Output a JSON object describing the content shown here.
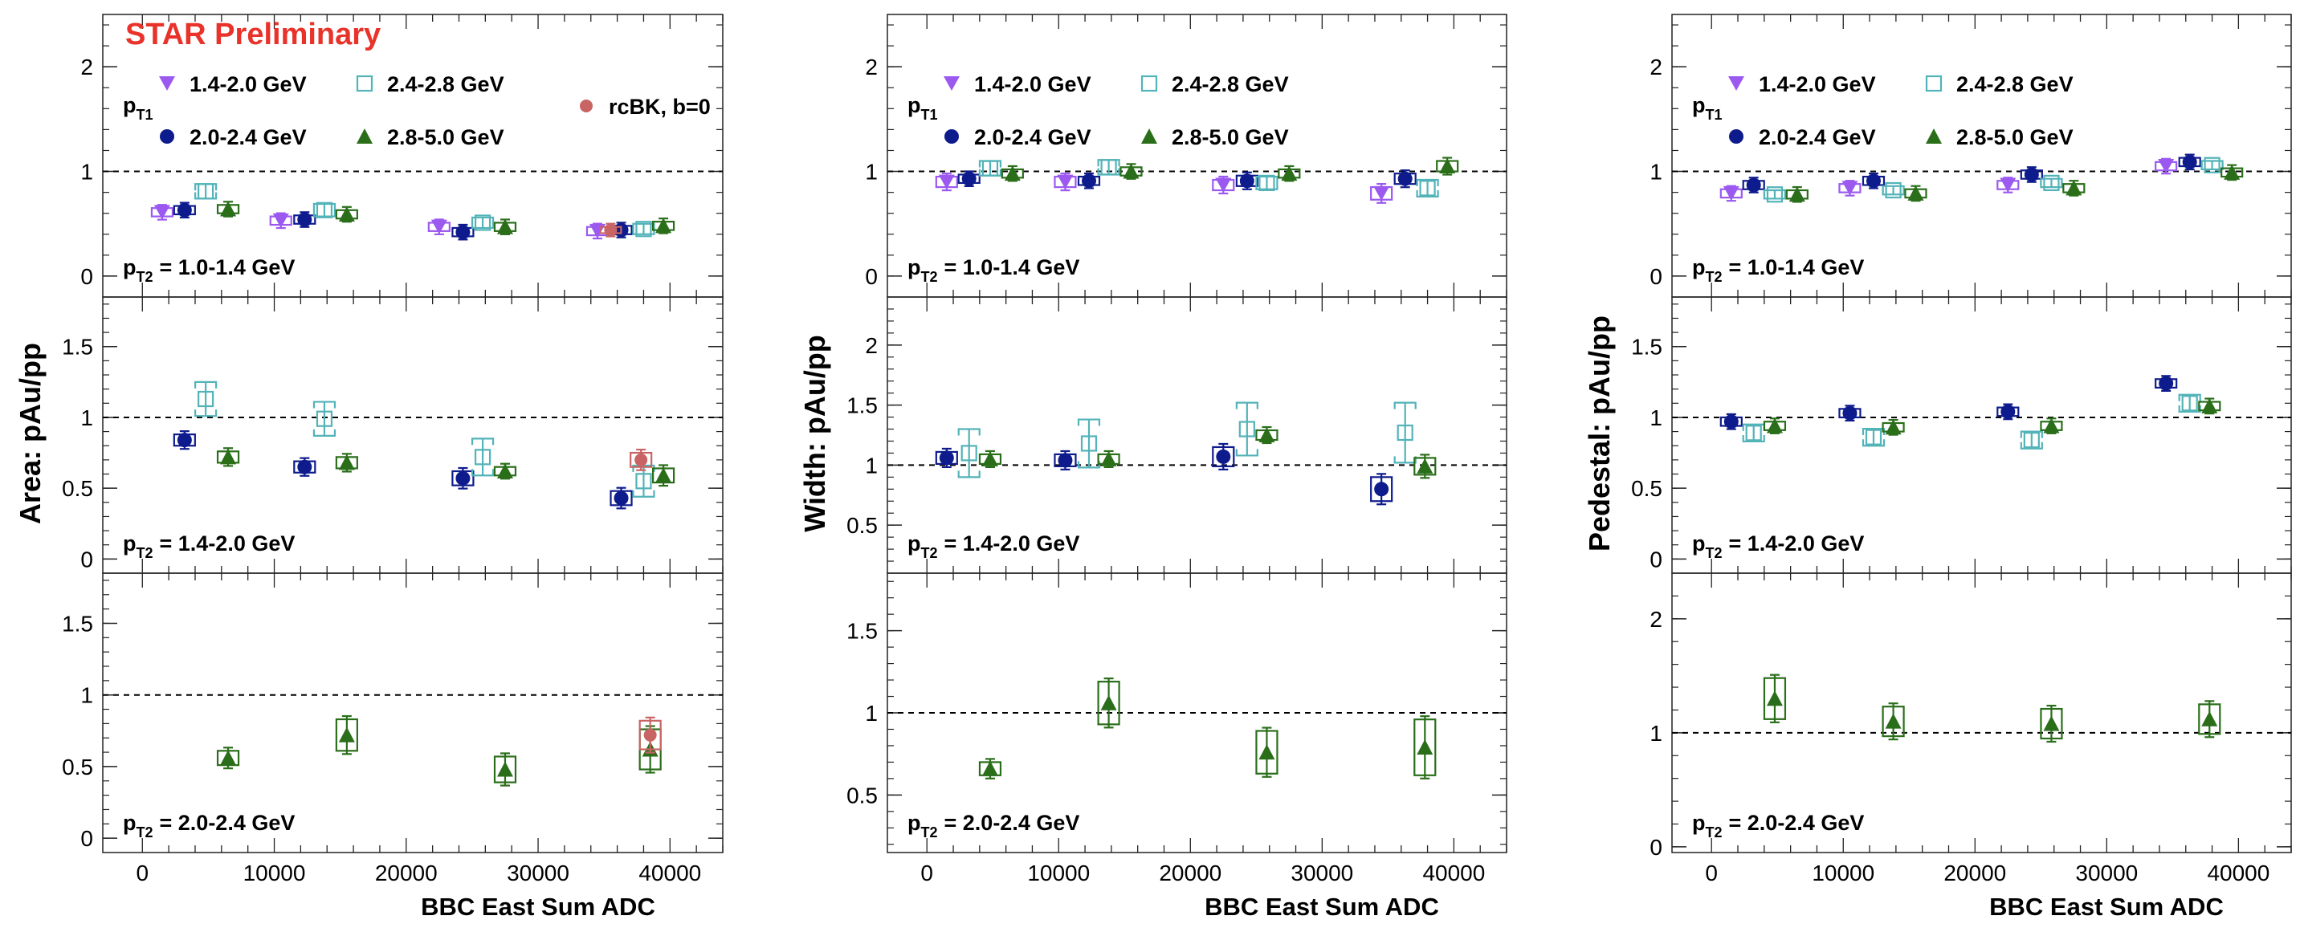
{
  "colors": {
    "s14": "#9b59f0",
    "s20": "#0e1b8c",
    "s24": "#52b3b8",
    "s28": "#2a6e1a",
    "rcbk": "#c96464"
  },
  "common": {
    "preliminary": "STAR Preliminary",
    "xlabel": "BBC East Sum ADC",
    "xticks": [
      "0",
      "10000",
      "20000",
      "30000",
      "40000"
    ],
    "pt1_label": "p",
    "pt1_sub": "T1",
    "pt2_label": "p",
    "pt2_sub": "T2",
    "legend": {
      "s14": "1.4-2.0 GeV",
      "s24": "2.4-2.8 GeV",
      "s20": "2.0-2.4 GeV",
      "s28": "2.8-5.0 GeV",
      "rcbk": "rcBK, b=0"
    }
  },
  "chart_data": [
    {
      "type": "scatter",
      "ylabel": "Area: pAu/pp",
      "xlim": [
        -3000,
        44000
      ],
      "rows": [
        {
          "pt2": "= 1.0-1.4 GeV",
          "ylim": [
            -0.2,
            2.5
          ],
          "yticks": [
            "0",
            "1",
            "2"
          ],
          "series": [
            {
              "key": "s14",
              "points": [
                [
                  1500,
                  0.61,
                  0.04
                ],
                [
                  10500,
                  0.53,
                  0.04
                ],
                [
                  22500,
                  0.47,
                  0.04
                ],
                [
                  34500,
                  0.43,
                  0.04
                ]
              ]
            },
            {
              "key": "s20",
              "points": [
                [
                  3200,
                  0.63,
                  0.04
                ],
                [
                  12300,
                  0.54,
                  0.04
                ],
                [
                  24300,
                  0.42,
                  0.04
                ],
                [
                  36300,
                  0.44,
                  0.04
                ]
              ]
            },
            {
              "key": "s24",
              "points": [
                [
                  4800,
                  0.81,
                  0.07
                ],
                [
                  13800,
                  0.63,
                  0.06
                ],
                [
                  25800,
                  0.51,
                  0.05
                ],
                [
                  38000,
                  0.45,
                  0.05
                ]
              ]
            },
            {
              "key": "s28",
              "points": [
                [
                  6500,
                  0.64,
                  0.04
                ],
                [
                  15500,
                  0.59,
                  0.04
                ],
                [
                  27500,
                  0.47,
                  0.04
                ],
                [
                  39500,
                  0.48,
                  0.04
                ]
              ]
            },
            {
              "key": "rcbk",
              "points": [
                [
                  35500,
                  0.44,
                  0.03
                ]
              ]
            }
          ]
        },
        {
          "pt2": "= 1.4-2.0 GeV",
          "ylim": [
            -0.1,
            1.85
          ],
          "yticks": [
            "0",
            "0.5",
            "1",
            "1.5"
          ],
          "series": [
            {
              "key": "s20",
              "points": [
                [
                  3200,
                  0.84,
                  0.04
                ],
                [
                  12300,
                  0.65,
                  0.04
                ],
                [
                  24300,
                  0.57,
                  0.05
                ],
                [
                  36300,
                  0.43,
                  0.05
                ]
              ]
            },
            {
              "key": "s24",
              "points": [
                [
                  4800,
                  1.13,
                  0.12
                ],
                [
                  13800,
                  0.99,
                  0.12
                ],
                [
                  25800,
                  0.72,
                  0.13
                ],
                [
                  38000,
                  0.55,
                  0.11
                ]
              ]
            },
            {
              "key": "s28",
              "points": [
                [
                  6500,
                  0.72,
                  0.04
                ],
                [
                  15500,
                  0.68,
                  0.04
                ],
                [
                  27500,
                  0.62,
                  0.03
                ],
                [
                  39500,
                  0.59,
                  0.05
                ]
              ]
            },
            {
              "key": "rcbk",
              "points": [
                [
                  37800,
                  0.7,
                  0.05
                ]
              ]
            }
          ]
        },
        {
          "pt2": "= 2.0-2.4 GeV",
          "ylim": [
            -0.1,
            1.85
          ],
          "yticks": [
            "0",
            "0.5",
            "1",
            "1.5"
          ],
          "series": [
            {
              "key": "s28",
              "points": [
                [
                  6500,
                  0.56,
                  0.05
                ],
                [
                  15500,
                  0.72,
                  0.11
                ],
                [
                  27500,
                  0.48,
                  0.09
                ],
                [
                  38500,
                  0.62,
                  0.14
                ]
              ]
            },
            {
              "key": "rcbk",
              "points": [
                [
                  38500,
                  0.72,
                  0.1
                ]
              ]
            }
          ]
        }
      ]
    },
    {
      "type": "scatter",
      "ylabel": "Width: pAu/pp",
      "xlim": [
        -3000,
        44000
      ],
      "rows": [
        {
          "pt2": "= 1.0-1.4 GeV",
          "ylim": [
            -0.2,
            2.5
          ],
          "yticks": [
            "0",
            "1",
            "2"
          ],
          "series": [
            {
              "key": "s14",
              "points": [
                [
                  1500,
                  0.9,
                  0.05
                ],
                [
                  10500,
                  0.9,
                  0.05
                ],
                [
                  22500,
                  0.87,
                  0.05
                ],
                [
                  34500,
                  0.79,
                  0.06
                ]
              ]
            },
            {
              "key": "s20",
              "points": [
                [
                  3200,
                  0.93,
                  0.04
                ],
                [
                  12300,
                  0.91,
                  0.04
                ],
                [
                  24300,
                  0.91,
                  0.05
                ],
                [
                  36300,
                  0.93,
                  0.05
                ]
              ]
            },
            {
              "key": "s24",
              "points": [
                [
                  4800,
                  1.03,
                  0.07
                ],
                [
                  13800,
                  1.04,
                  0.07
                ],
                [
                  25800,
                  0.89,
                  0.06
                ],
                [
                  38000,
                  0.84,
                  0.08
                ]
              ]
            },
            {
              "key": "s28",
              "points": [
                [
                  6500,
                  0.98,
                  0.04
                ],
                [
                  15500,
                  1.0,
                  0.04
                ],
                [
                  27500,
                  0.98,
                  0.04
                ],
                [
                  39500,
                  1.05,
                  0.05
                ]
              ]
            }
          ]
        },
        {
          "pt2": "= 1.4-2.0 GeV",
          "ylim": [
            0.1,
            2.4
          ],
          "yticks": [
            "0.5",
            "1",
            "1.5",
            "2"
          ],
          "series": [
            {
              "key": "s20",
              "points": [
                [
                  1500,
                  1.06,
                  0.05
                ],
                [
                  10500,
                  1.04,
                  0.05
                ],
                [
                  22500,
                  1.07,
                  0.08
                ],
                [
                  34500,
                  0.8,
                  0.1
                ]
              ]
            },
            {
              "key": "s24",
              "points": [
                [
                  3200,
                  1.1,
                  0.2
                ],
                [
                  12300,
                  1.18,
                  0.2
                ],
                [
                  24300,
                  1.3,
                  0.22
                ],
                [
                  36300,
                  1.27,
                  0.25
                ]
              ]
            },
            {
              "key": "s28",
              "points": [
                [
                  4800,
                  1.05,
                  0.04
                ],
                [
                  13800,
                  1.05,
                  0.04
                ],
                [
                  25800,
                  1.25,
                  0.04
                ],
                [
                  37800,
                  0.99,
                  0.07
                ]
              ]
            }
          ]
        },
        {
          "pt2": "= 2.0-2.4 GeV",
          "ylim": [
            0.15,
            1.85
          ],
          "yticks": [
            "0.5",
            "1",
            "1.5"
          ],
          "series": [
            {
              "key": "s28",
              "points": [
                [
                  4800,
                  0.66,
                  0.04
                ],
                [
                  13800,
                  1.06,
                  0.13
                ],
                [
                  25800,
                  0.76,
                  0.13
                ],
                [
                  37800,
                  0.79,
                  0.17
                ]
              ]
            }
          ]
        }
      ]
    },
    {
      "type": "scatter",
      "ylabel": "Pedestal: pAu/pp",
      "xlim": [
        -3000,
        44000
      ],
      "rows": [
        {
          "pt2": "= 1.0-1.4 GeV",
          "ylim": [
            -0.2,
            2.5
          ],
          "yticks": [
            "0",
            "1",
            "2"
          ],
          "series": [
            {
              "key": "s14",
              "points": [
                [
                  1500,
                  0.79,
                  0.04
                ],
                [
                  10500,
                  0.84,
                  0.04
                ],
                [
                  22500,
                  0.87,
                  0.04
                ],
                [
                  34500,
                  1.05,
                  0.04
                ]
              ]
            },
            {
              "key": "s20",
              "points": [
                [
                  3200,
                  0.87,
                  0.04
                ],
                [
                  12300,
                  0.91,
                  0.04
                ],
                [
                  24300,
                  0.97,
                  0.04
                ],
                [
                  36300,
                  1.09,
                  0.04
                ]
              ]
            },
            {
              "key": "s24",
              "points": [
                [
                  4800,
                  0.78,
                  0.04
                ],
                [
                  13800,
                  0.82,
                  0.04
                ],
                [
                  25800,
                  0.89,
                  0.04
                ],
                [
                  38000,
                  1.06,
                  0.04
                ]
              ]
            },
            {
              "key": "s28",
              "points": [
                [
                  6500,
                  0.78,
                  0.04
                ],
                [
                  15500,
                  0.79,
                  0.04
                ],
                [
                  27500,
                  0.84,
                  0.04
                ],
                [
                  39500,
                  0.99,
                  0.04
                ]
              ]
            }
          ]
        },
        {
          "pt2": "= 1.4-2.0 GeV",
          "ylim": [
            -0.1,
            1.85
          ],
          "yticks": [
            "0",
            "0.5",
            "1",
            "1.5"
          ],
          "series": [
            {
              "key": "s20",
              "points": [
                [
                  1500,
                  0.97,
                  0.03
                ],
                [
                  10500,
                  1.03,
                  0.03
                ],
                [
                  22500,
                  1.04,
                  0.03
                ],
                [
                  34500,
                  1.24,
                  0.03
                ]
              ]
            },
            {
              "key": "s24",
              "points": [
                [
                  3200,
                  0.89,
                  0.06
                ],
                [
                  12300,
                  0.86,
                  0.06
                ],
                [
                  24300,
                  0.84,
                  0.06
                ],
                [
                  36300,
                  1.1,
                  0.06
                ]
              ]
            },
            {
              "key": "s28",
              "points": [
                [
                  4800,
                  0.94,
                  0.03
                ],
                [
                  13800,
                  0.93,
                  0.03
                ],
                [
                  25800,
                  0.94,
                  0.03
                ],
                [
                  37800,
                  1.08,
                  0.03
                ]
              ]
            }
          ]
        },
        {
          "pt2": "= 2.0-2.4 GeV",
          "ylim": [
            -0.05,
            2.4
          ],
          "yticks": [
            "0",
            "1",
            "2"
          ],
          "series": [
            {
              "key": "s28",
              "points": [
                [
                  4800,
                  1.3,
                  0.18
                ],
                [
                  13800,
                  1.1,
                  0.13
                ],
                [
                  25800,
                  1.08,
                  0.13
                ],
                [
                  37800,
                  1.12,
                  0.13
                ]
              ]
            }
          ]
        }
      ]
    }
  ]
}
